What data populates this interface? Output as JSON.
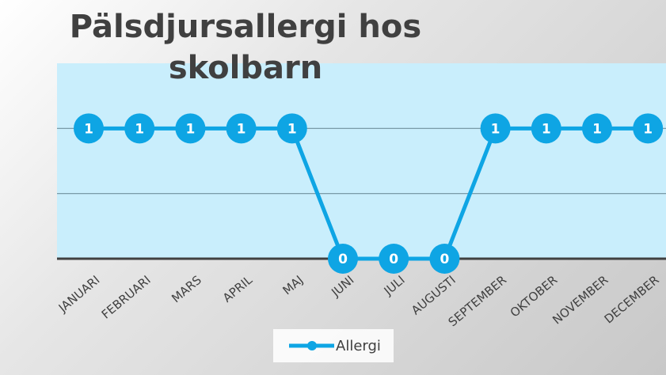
{
  "chart_data": {
    "type": "line",
    "title": "Pälsdjursallergi hos skolbarn",
    "categories": [
      "JANUARI",
      "FEBRUARI",
      "MARS",
      "APRIL",
      "MAJ",
      "JUNI",
      "JULI",
      "AUGUSTI",
      "SEPTEMBER",
      "OKTOBER",
      "NOVEMBER",
      "DECEMBER"
    ],
    "series": [
      {
        "name": "Allergi",
        "color": "#0ea5e4",
        "values": [
          1,
          1,
          1,
          1,
          1,
          0,
          0,
          0,
          1,
          1,
          1,
          1
        ]
      }
    ],
    "ylim": [
      0,
      1.5
    ],
    "yticks": [
      0,
      0.5,
      1
    ],
    "grid": true,
    "legend": "bottom"
  }
}
